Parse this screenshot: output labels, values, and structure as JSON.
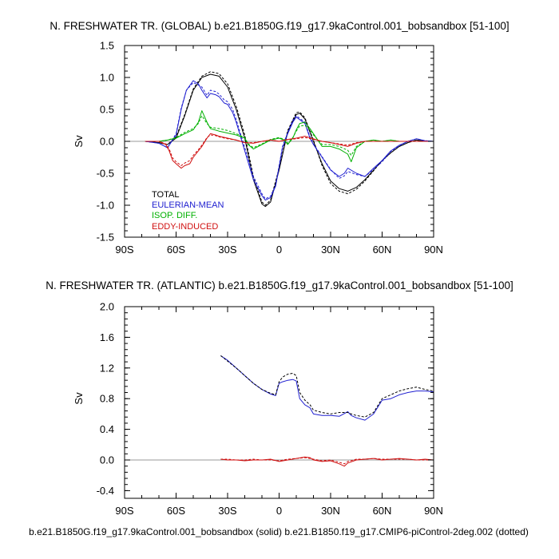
{
  "footer": "b.e21.B1850G.f19_g17.9kaControl.001_bobsandbox (solid) b.e21.B1850.f19_g17.CMIP6-piControl-2deg.002 (dotted)",
  "colors": {
    "total": "#000000",
    "eulerian": "#2020d0",
    "isop": "#00b000",
    "eddy": "#d01010",
    "zero": "#999999"
  },
  "chart_data": [
    {
      "type": "line",
      "title": "N. FRESHWATER TR. (GLOBAL) b.e21.B1850G.f19_g17.9kaControl.001_bobsandbox [51-100]",
      "ylabel": "Sv",
      "xlim": [
        -90,
        90
      ],
      "ylim": [
        -1.5,
        1.5
      ],
      "x_ticks": [
        -90,
        -60,
        -30,
        0,
        30,
        60,
        90
      ],
      "x_tick_labels": [
        "90S",
        "60S",
        "30S",
        "0",
        "30N",
        "60N",
        "90N"
      ],
      "y_ticks": [
        -1.5,
        -1.0,
        -0.5,
        0.0,
        0.5,
        1.0,
        1.5
      ],
      "y_tick_labels": [
        "-1.5",
        "-1.0",
        "-0.5",
        "0.0",
        "0.5",
        "1.0",
        "1.5"
      ],
      "legend": [
        "TOTAL",
        "EULERIAN-MEAN",
        "ISOP. DIFF.",
        "EDDY-INDUCED"
      ],
      "legend_position": "bottom-left",
      "series": [
        {
          "key": "total",
          "name": "TOTAL",
          "style": "solid",
          "x": [
            -78,
            -70,
            -65,
            -60,
            -55,
            -50,
            -45,
            -40,
            -35,
            -30,
            -25,
            -20,
            -15,
            -10,
            -8,
            -5,
            0,
            5,
            10,
            12,
            15,
            20,
            25,
            30,
            35,
            40,
            45,
            50,
            55,
            60,
            65,
            70,
            75,
            80,
            85,
            90
          ],
          "y": [
            0,
            -0.02,
            -0.05,
            0.05,
            0.4,
            0.8,
            1.0,
            1.05,
            1.02,
            0.85,
            0.5,
            0.05,
            -0.6,
            -0.98,
            -1.02,
            -0.95,
            -0.45,
            0.15,
            0.42,
            0.44,
            0.35,
            0.0,
            -0.35,
            -0.62,
            -0.74,
            -0.78,
            -0.72,
            -0.6,
            -0.45,
            -0.3,
            -0.18,
            -0.08,
            -0.02,
            0.02,
            0.0,
            0.0
          ]
        },
        {
          "key": "total",
          "name": "",
          "style": "dotted",
          "x": [
            -78,
            -70,
            -65,
            -60,
            -55,
            -50,
            -45,
            -40,
            -35,
            -30,
            -25,
            -20,
            -15,
            -10,
            -8,
            -5,
            0,
            5,
            10,
            12,
            15,
            20,
            25,
            30,
            35,
            40,
            45,
            50,
            55,
            60,
            65,
            70,
            75,
            80,
            85,
            90
          ],
          "y": [
            0,
            -0.02,
            -0.05,
            0.07,
            0.42,
            0.82,
            1.02,
            1.09,
            1.06,
            0.9,
            0.55,
            0.1,
            -0.55,
            -0.95,
            -1.0,
            -0.92,
            -0.42,
            0.17,
            0.45,
            0.46,
            0.37,
            0.02,
            -0.38,
            -0.66,
            -0.78,
            -0.82,
            -0.75,
            -0.62,
            -0.46,
            -0.3,
            -0.18,
            -0.08,
            -0.02,
            0.02,
            0.0,
            0.0
          ]
        },
        {
          "key": "eulerian",
          "name": "EULERIAN-MEAN",
          "style": "solid",
          "x": [
            -78,
            -70,
            -65,
            -60,
            -57,
            -54,
            -50,
            -47,
            -45,
            -42,
            -40,
            -37,
            -35,
            -32,
            -30,
            -27,
            -25,
            -20,
            -15,
            -10,
            -8,
            -5,
            -2,
            0,
            2,
            5,
            8,
            10,
            12,
            15,
            18,
            20,
            25,
            30,
            35,
            38,
            40,
            45,
            50,
            55,
            60,
            65,
            70,
            75,
            80,
            85,
            90
          ],
          "y": [
            0,
            -0.03,
            -0.1,
            0.1,
            0.5,
            0.8,
            0.95,
            0.9,
            0.8,
            0.68,
            0.75,
            0.73,
            0.7,
            0.6,
            0.58,
            0.45,
            0.3,
            -0.15,
            -0.6,
            -0.85,
            -0.92,
            -0.88,
            -0.7,
            -0.4,
            -0.1,
            0.12,
            0.3,
            0.38,
            0.34,
            0.28,
            0.05,
            -0.05,
            -0.25,
            -0.45,
            -0.55,
            -0.5,
            -0.42,
            -0.5,
            -0.55,
            -0.42,
            -0.3,
            -0.15,
            -0.06,
            0.0,
            0.04,
            0.01,
            0.0
          ]
        },
        {
          "key": "eulerian",
          "name": "",
          "style": "dotted",
          "x": [
            -78,
            -70,
            -65,
            -60,
            -57,
            -54,
            -50,
            -47,
            -45,
            -42,
            -40,
            -37,
            -35,
            -32,
            -30,
            -27,
            -25,
            -20,
            -15,
            -10,
            -8,
            -5,
            -2,
            0,
            2,
            5,
            8,
            10,
            12,
            15,
            18,
            20,
            25,
            30,
            35,
            38,
            40,
            45,
            50,
            55,
            60,
            65,
            70,
            75,
            80,
            85,
            90
          ],
          "y": [
            0,
            -0.03,
            -0.1,
            0.12,
            0.52,
            0.8,
            0.92,
            0.88,
            0.85,
            0.72,
            0.8,
            0.78,
            0.74,
            0.65,
            0.62,
            0.5,
            0.34,
            -0.1,
            -0.55,
            -0.82,
            -0.9,
            -0.86,
            -0.68,
            -0.38,
            -0.08,
            0.14,
            0.33,
            0.4,
            0.36,
            0.3,
            0.07,
            -0.04,
            -0.24,
            -0.44,
            -0.58,
            -0.54,
            -0.47,
            -0.52,
            -0.55,
            -0.44,
            -0.32,
            -0.16,
            -0.07,
            0.0,
            0.04,
            0.01,
            0.0
          ]
        },
        {
          "key": "isop",
          "name": "ISOP. DIFF.",
          "style": "solid",
          "x": [
            -78,
            -70,
            -65,
            -60,
            -55,
            -50,
            -47,
            -45,
            -42,
            -40,
            -35,
            -30,
            -25,
            -20,
            -18,
            -15,
            -10,
            -5,
            0,
            3,
            5,
            8,
            10,
            12,
            15,
            18,
            20,
            25,
            30,
            35,
            40,
            42,
            45,
            50,
            55,
            60,
            65,
            70,
            80,
            90
          ],
          "y": [
            0,
            0,
            0.02,
            0.05,
            0.12,
            0.18,
            0.3,
            0.48,
            0.3,
            0.2,
            0.16,
            0.13,
            0.1,
            0.05,
            -0.05,
            -0.12,
            -0.05,
            0.02,
            0.05,
            0.02,
            -0.05,
            0.05,
            0.18,
            0.28,
            0.3,
            0.2,
            0.12,
            -0.08,
            -0.08,
            -0.12,
            -0.2,
            -0.32,
            -0.1,
            0.0,
            0.02,
            0.0,
            0.02,
            0.0,
            0.0,
            0.0
          ]
        },
        {
          "key": "isop",
          "name": "",
          "style": "dotted",
          "x": [
            -78,
            -70,
            -65,
            -60,
            -55,
            -50,
            -47,
            -45,
            -42,
            -40,
            -35,
            -30,
            -25,
            -20,
            -18,
            -15,
            -10,
            -5,
            0,
            3,
            5,
            8,
            10,
            12,
            15,
            18,
            20,
            25,
            30,
            35,
            40,
            42,
            45,
            50,
            55,
            60,
            65,
            70,
            80,
            90
          ],
          "y": [
            0,
            0,
            0.02,
            0.06,
            0.14,
            0.2,
            0.28,
            0.4,
            0.28,
            0.22,
            0.2,
            0.17,
            0.12,
            0.06,
            -0.04,
            -0.1,
            -0.04,
            0.03,
            0.06,
            0.03,
            -0.03,
            0.06,
            0.16,
            0.24,
            0.25,
            0.18,
            0.1,
            -0.05,
            -0.05,
            -0.08,
            -0.14,
            -0.22,
            -0.08,
            0.0,
            0.02,
            0.0,
            0.02,
            0.0,
            0.0,
            0.0
          ]
        },
        {
          "key": "eddy",
          "name": "EDDY-INDUCED",
          "style": "solid",
          "x": [
            -78,
            -70,
            -66,
            -64,
            -62,
            -60,
            -57,
            -55,
            -52,
            -50,
            -47,
            -45,
            -42,
            -40,
            -37,
            -35,
            -30,
            -25,
            -20,
            -15,
            -10,
            -5,
            0,
            5,
            10,
            15,
            20,
            25,
            30,
            35,
            40,
            45,
            50,
            55,
            60,
            70,
            80,
            90
          ],
          "y": [
            0,
            0,
            -0.05,
            -0.15,
            -0.3,
            -0.35,
            -0.42,
            -0.38,
            -0.35,
            -0.25,
            -0.15,
            -0.08,
            0.05,
            0.12,
            0.1,
            0.08,
            0.05,
            0.02,
            -0.02,
            -0.03,
            0.0,
            0.02,
            0.0,
            0.03,
            0.05,
            0.08,
            0.04,
            0.0,
            -0.02,
            -0.05,
            -0.08,
            -0.03,
            0.0,
            0.0,
            0.0,
            0.0,
            0.0,
            0.0
          ]
        },
        {
          "key": "eddy",
          "name": "",
          "style": "dotted",
          "x": [
            -78,
            -70,
            -66,
            -64,
            -62,
            -60,
            -57,
            -55,
            -52,
            -50,
            -47,
            -45,
            -42,
            -40,
            -37,
            -35,
            -30,
            -25,
            -20,
            -15,
            -10,
            -5,
            0,
            5,
            10,
            15,
            20,
            25,
            30,
            35,
            40,
            45,
            50,
            55,
            60,
            70,
            80,
            90
          ],
          "y": [
            0,
            0,
            -0.04,
            -0.12,
            -0.26,
            -0.32,
            -0.38,
            -0.34,
            -0.3,
            -0.22,
            -0.13,
            -0.06,
            0.06,
            0.1,
            0.09,
            0.07,
            0.04,
            0.02,
            -0.02,
            -0.02,
            0.0,
            0.02,
            0.0,
            0.03,
            0.04,
            0.06,
            0.03,
            0.0,
            -0.02,
            -0.04,
            -0.06,
            -0.02,
            0.0,
            0.0,
            0.0,
            0.0,
            0.0,
            0.0
          ]
        }
      ]
    },
    {
      "type": "line",
      "title": "N. FRESHWATER TR. (ATLANTIC) b.e21.B1850G.f19_g17.9kaControl.001_bobsandbox [51-100]",
      "ylabel": "Sv",
      "xlim": [
        -90,
        90
      ],
      "ylim": [
        -0.5,
        2.0
      ],
      "x_ticks": [
        -90,
        -60,
        -30,
        0,
        30,
        60,
        90
      ],
      "x_tick_labels": [
        "90S",
        "60S",
        "30S",
        "0",
        "30N",
        "60N",
        "90N"
      ],
      "y_ticks": [
        -0.4,
        0.0,
        0.4,
        0.8,
        1.2,
        1.6,
        2.0
      ],
      "y_tick_labels": [
        "-0.4",
        "0.0",
        "0.4",
        "0.8",
        "1.2",
        "1.6",
        "2.0"
      ],
      "series": [
        {
          "key": "eulerian",
          "name": "",
          "style": "solid",
          "x": [
            -34,
            -30,
            -25,
            -20,
            -15,
            -10,
            -5,
            -2,
            0,
            2,
            5,
            8,
            10,
            12,
            15,
            18,
            20,
            25,
            30,
            35,
            40,
            42,
            45,
            50,
            55,
            60,
            65,
            70,
            75,
            80,
            85,
            90
          ],
          "y": [
            1.36,
            1.3,
            1.2,
            1.1,
            1.0,
            0.92,
            0.86,
            0.84,
            1.0,
            1.02,
            1.04,
            1.05,
            1.03,
            0.8,
            0.72,
            0.68,
            0.6,
            0.58,
            0.58,
            0.57,
            0.63,
            0.58,
            0.55,
            0.52,
            0.6,
            0.78,
            0.8,
            0.85,
            0.88,
            0.9,
            0.9,
            0.89
          ]
        },
        {
          "key": "total",
          "name": "",
          "style": "dotted",
          "x": [
            -34,
            -30,
            -25,
            -20,
            -15,
            -10,
            -5,
            -2,
            0,
            2,
            5,
            8,
            10,
            12,
            15,
            18,
            20,
            25,
            30,
            35,
            40,
            42,
            45,
            50,
            55,
            60,
            65,
            70,
            75,
            80,
            85,
            90
          ],
          "y": [
            1.36,
            1.29,
            1.2,
            1.1,
            1.0,
            0.92,
            0.87,
            0.85,
            1.02,
            1.08,
            1.12,
            1.13,
            1.1,
            0.88,
            0.78,
            0.72,
            0.65,
            0.62,
            0.6,
            0.62,
            0.62,
            0.6,
            0.58,
            0.56,
            0.62,
            0.8,
            0.85,
            0.9,
            0.93,
            0.95,
            0.92,
            0.9
          ]
        },
        {
          "key": "eddy",
          "name": "",
          "style": "solid",
          "x": [
            -34,
            -30,
            -25,
            -20,
            -15,
            -10,
            -5,
            0,
            5,
            10,
            15,
            18,
            20,
            25,
            30,
            35,
            38,
            40,
            45,
            50,
            55,
            60,
            65,
            70,
            75,
            80,
            85,
            90
          ],
          "y": [
            0.01,
            0.0,
            0.0,
            -0.01,
            0.0,
            0.0,
            0.01,
            -0.02,
            0.0,
            0.02,
            0.04,
            0.03,
            0.0,
            -0.02,
            -0.01,
            -0.05,
            -0.08,
            -0.04,
            0.0,
            0.01,
            0.02,
            0.0,
            0.01,
            0.02,
            0.01,
            0.0,
            0.01,
            0.0
          ]
        },
        {
          "key": "eddy",
          "name": "",
          "style": "dotted",
          "x": [
            -34,
            -30,
            -25,
            -20,
            -15,
            -10,
            -5,
            0,
            5,
            10,
            15,
            18,
            20,
            25,
            30,
            35,
            38,
            40,
            45,
            50,
            55,
            60,
            65,
            70,
            75,
            80,
            85,
            90
          ],
          "y": [
            0.01,
            0.01,
            0.0,
            0.0,
            0.01,
            0.0,
            0.0,
            -0.01,
            0.01,
            0.02,
            0.03,
            0.02,
            0.01,
            -0.01,
            0.0,
            -0.03,
            -0.05,
            -0.02,
            0.01,
            0.01,
            0.02,
            0.01,
            0.01,
            0.01,
            0.01,
            0.0,
            0.0,
            0.0
          ]
        }
      ]
    }
  ]
}
